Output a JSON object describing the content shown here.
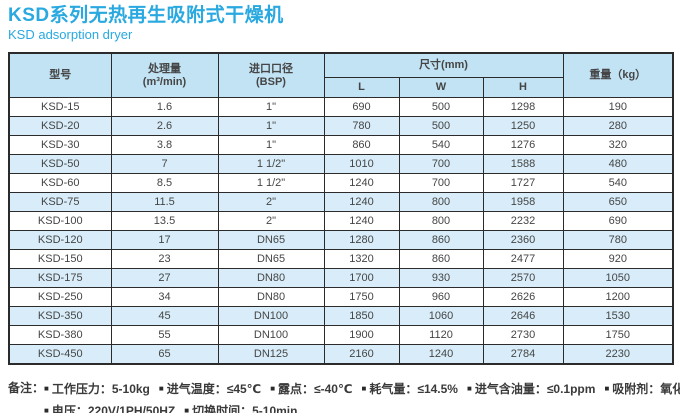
{
  "page": {
    "title": "KSD系列无热再生吸附式干燥机",
    "subtitle": "KSD adsorption  dryer"
  },
  "colors": {
    "accent": "#29a9e0",
    "header_bg": "#c2e3f4",
    "row_alt_bg": "#d8edf9",
    "border": "#2b2b2b",
    "text": "#454545"
  },
  "table": {
    "headers": {
      "model": "型号",
      "capacity_line1": "处理量",
      "capacity_line2": "(m³/min)",
      "inlet_line1": "进口口径",
      "inlet_line2": "(BSP)",
      "dimensions": "尺寸(mm)",
      "dim_l": "L",
      "dim_w": "W",
      "dim_h": "H",
      "weight": "重量（kg）"
    },
    "rows": [
      [
        "KSD-15",
        "1.6",
        "1\"",
        "690",
        "500",
        "1298",
        "190"
      ],
      [
        "KSD-20",
        "2.6",
        "1\"",
        "780",
        "500",
        "1250",
        "280"
      ],
      [
        "KSD-30",
        "3.8",
        "1\"",
        "860",
        "540",
        "1276",
        "320"
      ],
      [
        "KSD-50",
        "7",
        "1 1/2\"",
        "1010",
        "700",
        "1588",
        "480"
      ],
      [
        "KSD-60",
        "8.5",
        "1 1/2\"",
        "1240",
        "700",
        "1727",
        "540"
      ],
      [
        "KSD-75",
        "11.5",
        "2\"",
        "1240",
        "800",
        "1958",
        "650"
      ],
      [
        "KSD-100",
        "13.5",
        "2\"",
        "1240",
        "800",
        "2232",
        "690"
      ],
      [
        "KSD-120",
        "17",
        "DN65",
        "1280",
        "860",
        "2360",
        "780"
      ],
      [
        "KSD-150",
        "23",
        "DN65",
        "1320",
        "860",
        "2477",
        "920"
      ],
      [
        "KSD-175",
        "27",
        "DN80",
        "1700",
        "930",
        "2570",
        "1050"
      ],
      [
        "KSD-250",
        "34",
        "DN80",
        "1750",
        "960",
        "2626",
        "1200"
      ],
      [
        "KSD-350",
        "45",
        "DN100",
        "1850",
        "1060",
        "2646",
        "1530"
      ],
      [
        "KSD-380",
        "55",
        "DN100",
        "1900",
        "1120",
        "2730",
        "1750"
      ],
      [
        "KSD-450",
        "65",
        "DN125",
        "2160",
        "1240",
        "2784",
        "2230"
      ]
    ]
  },
  "notes": {
    "label": "备注：",
    "bullet": "■",
    "line1": [
      "工作压力：5-10kg",
      "进气温度：≤45℃",
      "露点：≤-40℃",
      "耗气量：≤14.5%",
      "进气含油量：≤0.1ppm",
      "吸附剂：氧化铝和分子筛"
    ],
    "line2": [
      "电压：220V/1PH/50HZ",
      "切换时间：5-10min"
    ]
  }
}
